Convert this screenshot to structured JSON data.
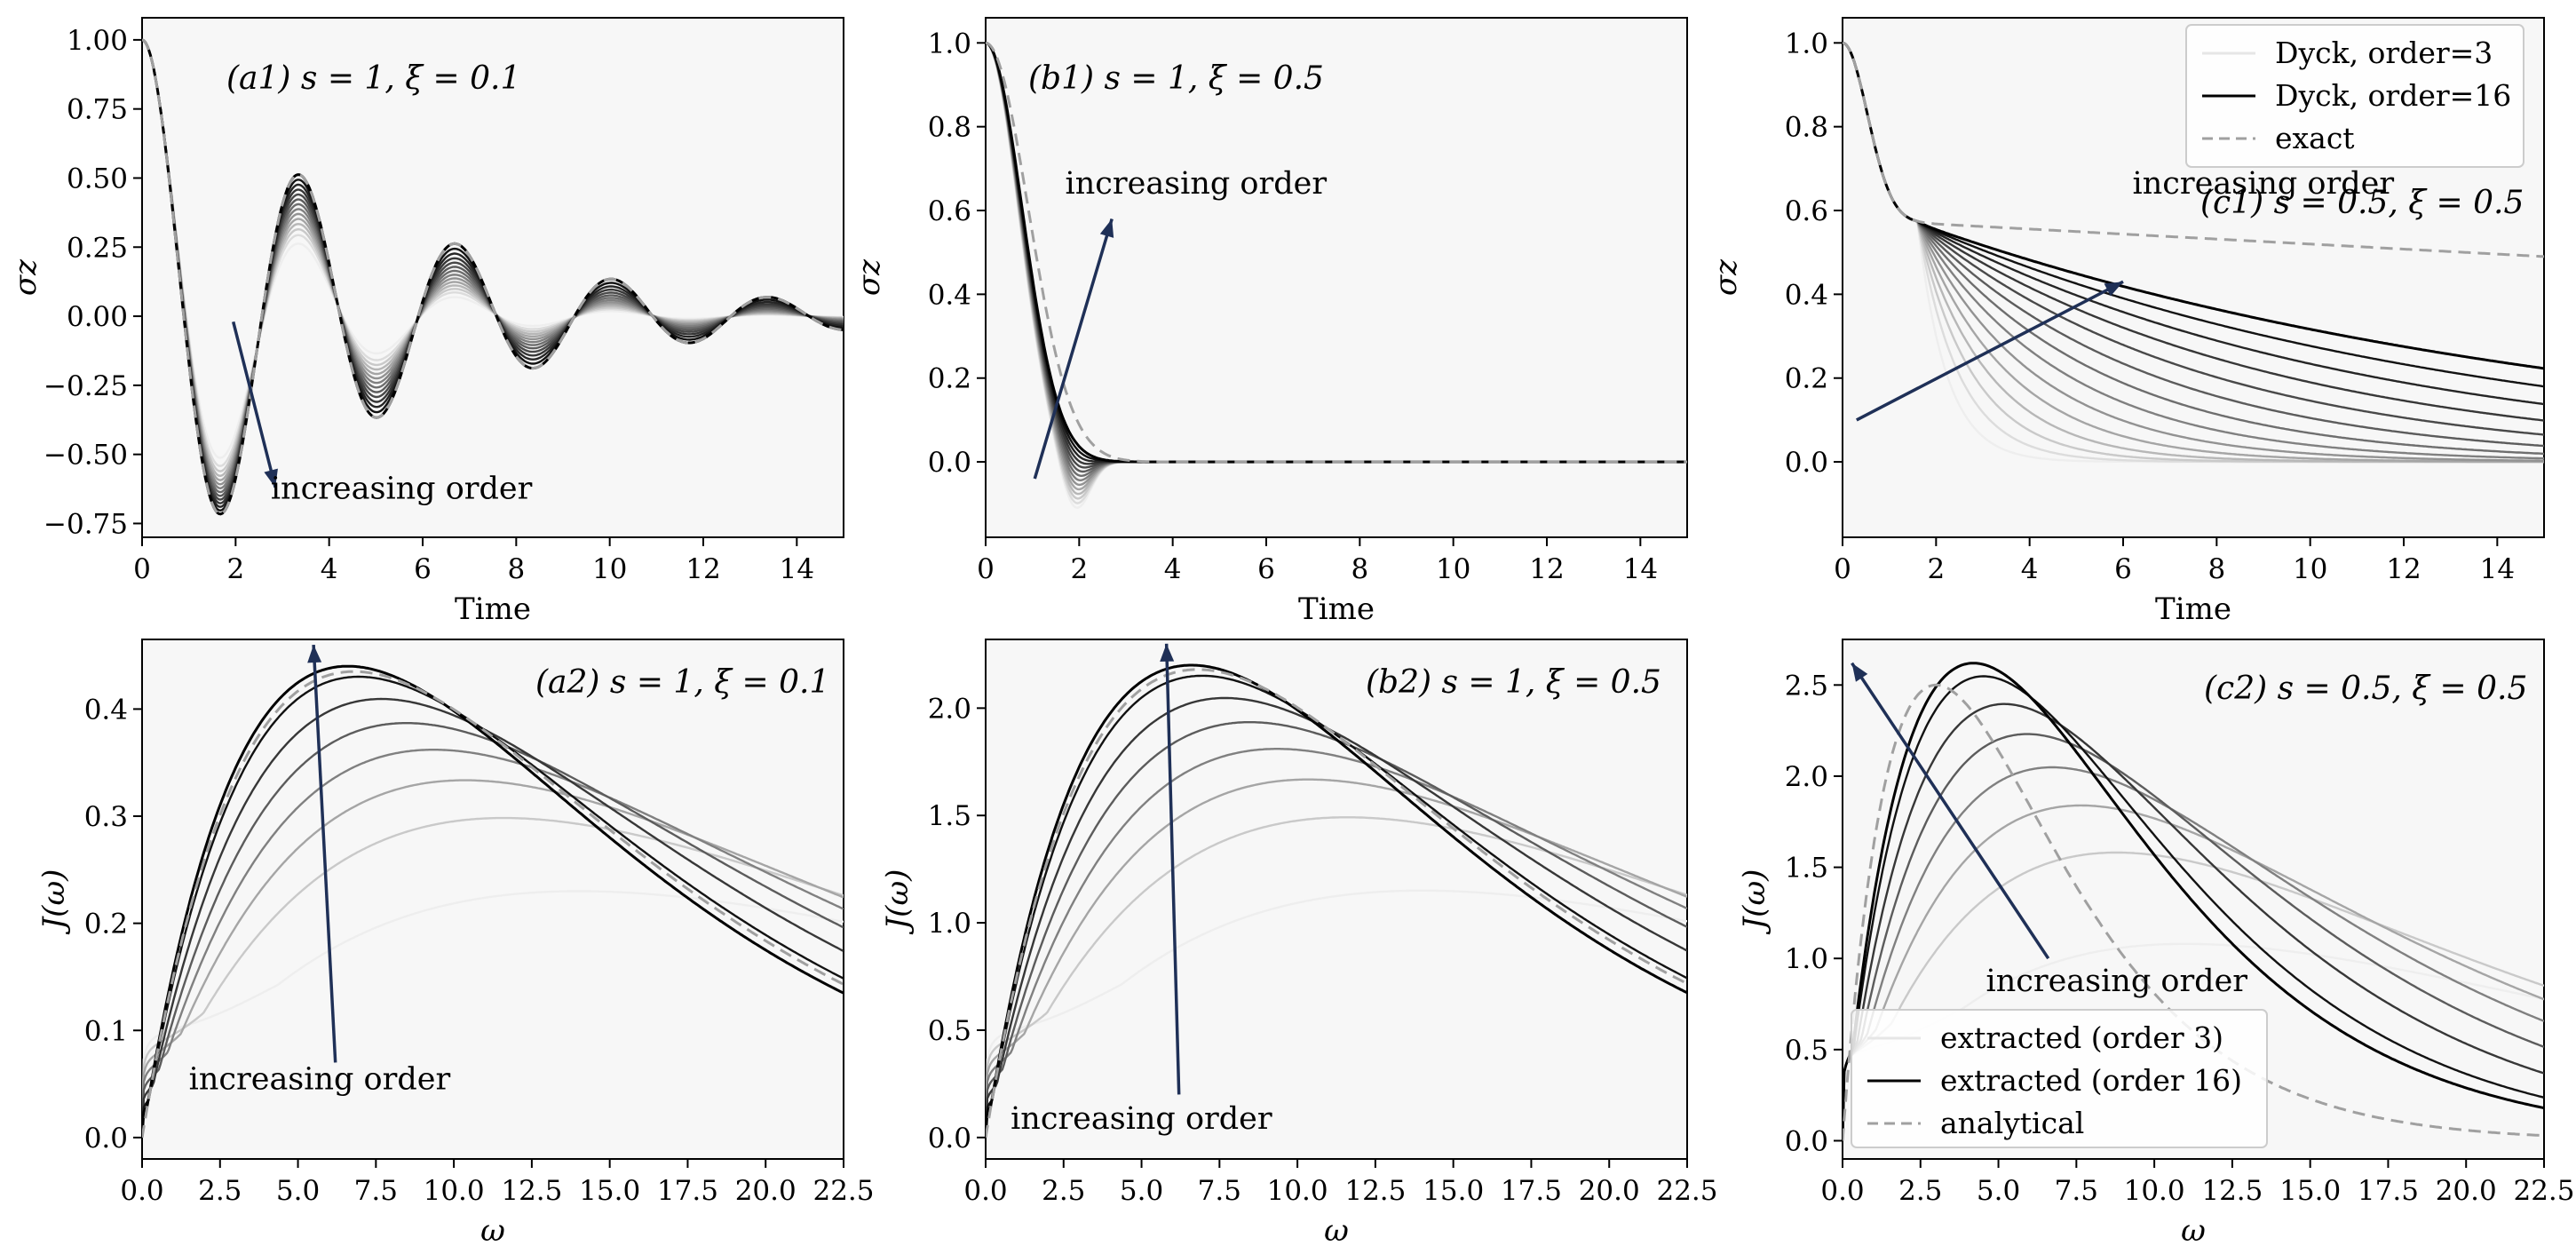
{
  "colors": {
    "arrow": "#1f3057",
    "exact": "#a0a0a0",
    "order_lightest": "#eeeeee",
    "order_darkest": "#000000"
  },
  "chart_data": [
    {
      "id": "a1",
      "type": "line",
      "panel_label": "(a1) s = 1, ξ = 0.1",
      "xlabel": "Time",
      "ylabel": "σz",
      "xlim": [
        0,
        15
      ],
      "ylim": [
        -0.8,
        1.08
      ],
      "xticks": [
        0,
        2,
        4,
        6,
        8,
        10,
        12,
        14
      ],
      "xtick_labels": [
        "0",
        "2",
        "4",
        "6",
        "8",
        "10",
        "12",
        "14"
      ],
      "yticks": [
        -0.75,
        -0.5,
        -0.25,
        0.0,
        0.25,
        0.5,
        0.75,
        1.0
      ],
      "ytick_labels": [
        "−0.75",
        "−0.50",
        "−0.25",
        "0.00",
        "0.25",
        "0.50",
        "0.75",
        "1.00"
      ],
      "annotation": {
        "text": "increasing order",
        "text_at": [
          2.75,
          -0.66
        ],
        "arrow_from": [
          1.95,
          -0.02
        ],
        "arrow_to": [
          2.85,
          -0.62
        ]
      },
      "exact": {
        "name": "exact",
        "kind": "osc",
        "gamma": 0.2,
        "omega": 1.88,
        "eq": 0.0,
        "tau": 3.5,
        "dip": 0
      },
      "orders_range": [
        3,
        16
      ],
      "series": [
        {
          "name": "order 3",
          "final_gamma": 0.4,
          "final_omega": 1.88,
          "final_eq": 0.0,
          "final_tau": 3.5,
          "early_eq": 0.0
        },
        {
          "name": "order 16",
          "final_gamma": 0.2,
          "final_omega": 1.88,
          "final_eq": 0.0,
          "final_tau": 3.5,
          "early_eq": 0.0
        }
      ]
    },
    {
      "id": "b1",
      "type": "line",
      "panel_label": "(b1) s = 1, ξ = 0.5",
      "xlabel": "Time",
      "ylabel": "σz",
      "xlim": [
        0,
        15
      ],
      "ylim": [
        -0.18,
        1.06
      ],
      "xticks": [
        0,
        2,
        4,
        6,
        8,
        10,
        12,
        14
      ],
      "xtick_labels": [
        "0",
        "2",
        "4",
        "6",
        "8",
        "10",
        "12",
        "14"
      ],
      "yticks": [
        0.0,
        0.2,
        0.4,
        0.6,
        0.8,
        1.0
      ],
      "ytick_labels": [
        "0.0",
        "0.2",
        "0.4",
        "0.6",
        "0.8",
        "1.0"
      ],
      "annotation": {
        "text": "increasing order",
        "text_at": [
          1.7,
          0.64
        ],
        "arrow_from": [
          1.05,
          -0.04
        ],
        "arrow_to": [
          2.7,
          0.58
        ]
      },
      "exact": {
        "name": "exact",
        "kind": "relax",
        "rate": 1.1,
        "eq": 0.0,
        "tau": 1.2,
        "dip": 0.12
      },
      "orders_range": [
        3,
        16
      ],
      "series": [
        {
          "name": "order 3",
          "final_rate": 1.9,
          "final_eq": 0.0,
          "dip": 0.13
        },
        {
          "name": "order 16",
          "final_rate": 1.5,
          "final_eq": 0.0,
          "dip": 0.0
        }
      ]
    },
    {
      "id": "c1",
      "type": "line",
      "panel_label": "(c1) s = 0.5, ξ = 0.5",
      "xlabel": "Time",
      "ylabel": "σz",
      "xlim": [
        0,
        15
      ],
      "ylim": [
        -0.18,
        1.06
      ],
      "xticks": [
        0,
        2,
        4,
        6,
        8,
        10,
        12,
        14
      ],
      "xtick_labels": [
        "0",
        "2",
        "4",
        "6",
        "8",
        "10",
        "12",
        "14"
      ],
      "yticks": [
        0.0,
        0.2,
        0.4,
        0.6,
        0.8,
        1.0
      ],
      "ytick_labels": [
        "0.0",
        "0.2",
        "0.4",
        "0.6",
        "0.8",
        "1.0"
      ],
      "annotation": {
        "text": "increasing order",
        "text_at": [
          6.2,
          0.64
        ],
        "arrow_from": [
          0.3,
          0.1
        ],
        "arrow_to": [
          6.0,
          0.43
        ]
      },
      "exact": {
        "name": "exact",
        "kind": "plateau",
        "plateau": 0.57,
        "end_value": 0.49
      },
      "orders_range": [
        3,
        16
      ],
      "series": [
        {
          "name": "order 3",
          "decay_rate": 1.6
        },
        {
          "name": "order 16",
          "decay_rate": 0.07
        }
      ],
      "legend": {
        "placement": "upper right",
        "entries": [
          {
            "label": "Dyck, order=3",
            "style": "light"
          },
          {
            "label": "Dyck, order=16",
            "style": "dark"
          },
          {
            "label": "exact",
            "style": "dashed"
          }
        ]
      }
    },
    {
      "id": "a2",
      "type": "line",
      "panel_label": "(a2) s = 1, ξ = 0.1",
      "xlabel": "ω",
      "ylabel": "J(ω)",
      "xlim": [
        0,
        22.5
      ],
      "ylim": [
        -0.02,
        0.465
      ],
      "xticks": [
        0,
        2.5,
        5,
        7.5,
        10,
        12.5,
        15,
        17.5,
        20,
        22.5
      ],
      "xtick_labels": [
        "0.0",
        "2.5",
        "5.0",
        "7.5",
        "10.0",
        "12.5",
        "15.0",
        "17.5",
        "20.0",
        "22.5"
      ],
      "yticks": [
        0.0,
        0.1,
        0.2,
        0.3,
        0.4
      ],
      "ytick_labels": [
        "0.0",
        "0.1",
        "0.2",
        "0.3",
        "0.4"
      ],
      "annotation": {
        "text": "increasing order",
        "text_at": [
          1.5,
          0.045
        ],
        "arrow_from": [
          6.2,
          0.07
        ],
        "arrow_to": [
          5.5,
          0.46
        ]
      },
      "exact": {
        "name": "analytical",
        "peak_omega": 6.8,
        "peak": 0.435
      },
      "orders_range": [
        3,
        16
      ],
      "series": [
        {
          "name": "order 3",
          "peak_omega": 14.0,
          "peak": 0.23,
          "onset": 0.17
        },
        {
          "name": "order 16",
          "peak_omega": 6.6,
          "peak": 0.44,
          "onset": 0.05
        }
      ]
    },
    {
      "id": "b2",
      "type": "line",
      "panel_label": "(b2) s = 1, ξ = 0.5",
      "xlabel": "ω",
      "ylabel": "J(ω)",
      "xlim": [
        0,
        22.5
      ],
      "ylim": [
        -0.1,
        2.32
      ],
      "xticks": [
        0,
        2.5,
        5,
        7.5,
        10,
        12.5,
        15,
        17.5,
        20,
        22.5
      ],
      "xtick_labels": [
        "0.0",
        "2.5",
        "5.0",
        "7.5",
        "10.0",
        "12.5",
        "15.0",
        "17.5",
        "20.0",
        "22.5"
      ],
      "yticks": [
        0.0,
        0.5,
        1.0,
        1.5,
        2.0
      ],
      "ytick_labels": [
        "0.0",
        "0.5",
        "1.0",
        "1.5",
        "2.0"
      ],
      "annotation": {
        "text": "increasing order",
        "text_at": [
          0.8,
          0.04
        ],
        "arrow_from": [
          6.2,
          0.2
        ],
        "arrow_to": [
          5.8,
          2.3
        ]
      },
      "exact": {
        "name": "analytical",
        "peak_omega": 6.8,
        "peak": 2.18
      },
      "orders_range": [
        3,
        16
      ],
      "series": [
        {
          "name": "order 3",
          "peak_omega": 14.0,
          "peak": 1.15,
          "onset": 0.85
        },
        {
          "name": "order 16",
          "peak_omega": 6.6,
          "peak": 2.2,
          "onset": 0.25
        }
      ]
    },
    {
      "id": "c2",
      "type": "line",
      "panel_label": "(c2) s = 0.5, ξ = 0.5",
      "xlabel": "ω",
      "ylabel": "J(ω)",
      "xlim": [
        0,
        22.5
      ],
      "ylim": [
        -0.1,
        2.75
      ],
      "xticks": [
        0,
        2.5,
        5,
        7.5,
        10,
        12.5,
        15,
        17.5,
        20,
        22.5
      ],
      "xtick_labels": [
        "0.0",
        "2.5",
        "5.0",
        "7.5",
        "10.0",
        "12.5",
        "15.0",
        "17.5",
        "20.0",
        "22.5"
      ],
      "yticks": [
        0.0,
        0.5,
        1.0,
        1.5,
        2.0,
        2.5
      ],
      "ytick_labels": [
        "0.0",
        "0.5",
        "1.0",
        "1.5",
        "2.0",
        "2.5"
      ],
      "annotation": {
        "text": "increasing order",
        "text_at": [
          4.6,
          0.82
        ],
        "arrow_from": [
          6.6,
          1.0
        ],
        "arrow_to": [
          0.3,
          2.62
        ]
      },
      "exact": {
        "name": "analytical",
        "peak_omega": 3.0,
        "peak": 2.5
      },
      "orders_range": [
        3,
        16
      ],
      "series": [
        {
          "name": "order 3",
          "peak_omega": 11.0,
          "peak": 1.08,
          "onset": 0.85
        },
        {
          "name": "order 16",
          "peak_omega": 4.2,
          "peak": 2.62,
          "onset": 0.75
        }
      ],
      "legend": {
        "placement": "lower left",
        "entries": [
          {
            "label": "extracted (order 3)",
            "style": "light"
          },
          {
            "label": "extracted (order 16)",
            "style": "dark"
          },
          {
            "label": "analytical",
            "style": "dashed"
          }
        ]
      }
    }
  ]
}
